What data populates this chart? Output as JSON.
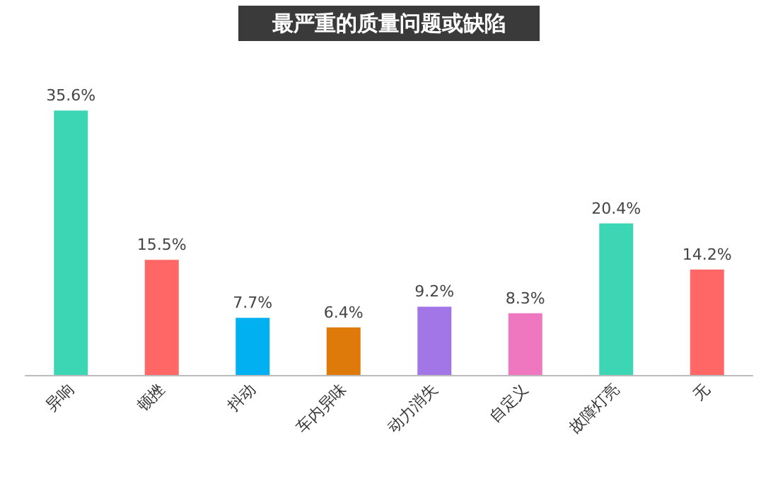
{
  "chart_data": {
    "type": "bar",
    "title": "最严重的质量问题或缺陷",
    "categories": [
      "异响",
      "顿挫",
      "抖动",
      "车内异味",
      "动力消失",
      "自定义",
      "故障灯亮",
      "无"
    ],
    "values": [
      35.6,
      15.5,
      7.7,
      6.4,
      9.2,
      8.3,
      20.4,
      14.2
    ],
    "colors": [
      "#3dd6b5",
      "#ff6666",
      "#00b0f0",
      "#dd7a0a",
      "#a276e6",
      "#ee77c0",
      "#3dd6b5",
      "#ff6666"
    ],
    "value_labels": [
      "35.6%",
      "15.5%",
      "7.7%",
      "6.4%",
      "9.2%",
      "8.3%",
      "20.4%",
      "14.2%"
    ]
  }
}
